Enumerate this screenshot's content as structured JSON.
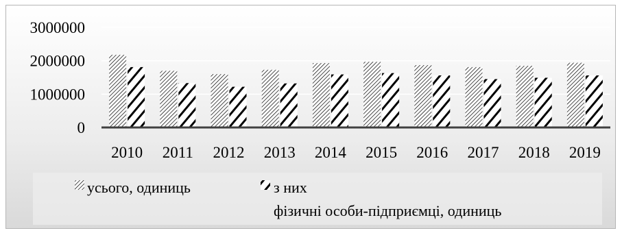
{
  "chart_data": {
    "type": "bar",
    "categories": [
      "2010",
      "2011",
      "2012",
      "2013",
      "2014",
      "2015",
      "2016",
      "2017",
      "2018",
      "2019"
    ],
    "series": [
      {
        "name": "усього, одиниць",
        "pattern": "thin-diagonal",
        "values": [
          2180000,
          1700000,
          1600000,
          1730000,
          1930000,
          1970000,
          1870000,
          1810000,
          1850000,
          1940000
        ]
      },
      {
        "name_lines": [
          "з них",
          "фізичні особи-підприємці, одиниць"
        ],
        "pattern": "thick-diagonal",
        "values": [
          1810000,
          1330000,
          1220000,
          1320000,
          1590000,
          1630000,
          1560000,
          1450000,
          1490000,
          1560000
        ]
      }
    ],
    "yticks": [
      "0",
      "1000000",
      "2000000",
      "3000000"
    ],
    "ylim": [
      0,
      3000000
    ],
    "grid": true,
    "legend_position": "bottom",
    "colors": {
      "bar": "#000000",
      "grid": "#ffffff",
      "axis": "#404040"
    }
  }
}
